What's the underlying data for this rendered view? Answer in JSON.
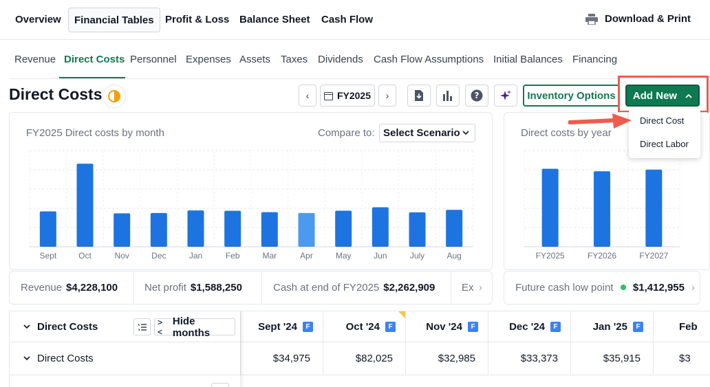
{
  "top_tabs": [
    "Overview",
    "Financial Tables",
    "Profit & Loss",
    "Balance Sheet",
    "Cash Flow"
  ],
  "download_label": "Download & Print",
  "sub_tabs": [
    "Revenue",
    "Direct Costs",
    "Personnel",
    "Expenses",
    "Assets",
    "Taxes",
    "Dividends",
    "Cash Flow Assumptions",
    "Initial Balances",
    "Financing"
  ],
  "page_title": "Direct Costs",
  "toolbar": {
    "year": "FY2025",
    "inventory_label": "Inventory Options",
    "add_new_label": "Add New"
  },
  "dropdown": {
    "items": [
      "Direct Cost",
      "Direct Labor"
    ]
  },
  "monthly_card": {
    "title": "FY2025 Direct costs by month",
    "compare_label": "Compare to:",
    "compare_value": "Select Scenario"
  },
  "yearly_card": {
    "title": "Direct costs by year"
  },
  "stats": {
    "revenue_label": "Revenue",
    "revenue_value": "$4,228,100",
    "net_profit_label": "Net profit",
    "net_profit_value": "$1,588,250",
    "cash_label": "Cash at end of FY2025",
    "cash_value": "$2,262,909",
    "ex_label": "Ex",
    "future_label": "Future cash low point",
    "future_value": "$1,412,955"
  },
  "table": {
    "header_title": "Direct Costs",
    "hide_months_label": "Hide months",
    "columns": [
      "Sept '24",
      "Oct '24",
      "Nov '24",
      "Dec '24",
      "Jan '25",
      "Feb"
    ],
    "badge": "F",
    "row_label": "Direct Costs",
    "row_values": [
      "$34,975",
      "$82,025",
      "$32,985",
      "$33,373",
      "$35,915",
      "$3"
    ]
  },
  "chart_data": [
    {
      "type": "bar",
      "title": "FY2025 Direct costs by month",
      "categories": [
        "Sept",
        "Oct",
        "Nov",
        "Dec",
        "Jan",
        "Feb",
        "Mar",
        "Apr",
        "May",
        "Jun",
        "July",
        "Aug"
      ],
      "values": [
        34975,
        82025,
        32985,
        33373,
        35915,
        35500,
        34200,
        33300,
        35600,
        39000,
        34000,
        36500
      ],
      "ylim": [
        0,
        95000
      ],
      "grid": true,
      "highlight_index": 7
    },
    {
      "type": "bar",
      "title": "Direct costs by year",
      "categories": [
        "FY2025",
        "FY2026",
        "FY2027"
      ],
      "values": [
        470000,
        455000,
        465000
      ],
      "ylim": [
        0,
        580000
      ],
      "grid": true
    }
  ],
  "colors": {
    "brand_green": "#0f7a52",
    "bar_blue": "#1d74e0",
    "bar_highlight": "#4a9af0",
    "callout_red": "#ef5b4c"
  }
}
